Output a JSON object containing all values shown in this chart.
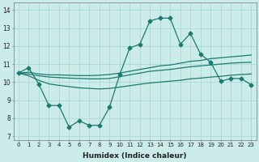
{
  "xlabel": "Humidex (Indice chaleur)",
  "background_color": "#ccecea",
  "grid_color": "#aad8d6",
  "line_color": "#1a7a6e",
  "xlim": [
    -0.5,
    23.5
  ],
  "ylim": [
    6.8,
    14.4
  ],
  "yticks": [
    7,
    8,
    9,
    10,
    11,
    12,
    13,
    14
  ],
  "xticks": [
    0,
    1,
    2,
    3,
    4,
    5,
    6,
    7,
    8,
    9,
    10,
    11,
    12,
    13,
    14,
    15,
    16,
    17,
    18,
    19,
    20,
    21,
    22,
    23
  ],
  "series": {
    "main": [
      10.5,
      10.8,
      9.9,
      8.7,
      8.7,
      7.5,
      7.85,
      7.6,
      7.6,
      8.6,
      10.4,
      11.9,
      12.1,
      13.4,
      13.55,
      13.55,
      12.1,
      12.7,
      11.55,
      11.1,
      10.05,
      10.2,
      10.2,
      9.85
    ],
    "upper": [
      10.5,
      10.55,
      10.45,
      10.4,
      10.4,
      10.38,
      10.36,
      10.36,
      10.38,
      10.42,
      10.5,
      10.6,
      10.7,
      10.8,
      10.9,
      10.95,
      11.05,
      11.15,
      11.2,
      11.3,
      11.35,
      11.4,
      11.45,
      11.5
    ],
    "middle": [
      10.5,
      10.45,
      10.35,
      10.28,
      10.25,
      10.22,
      10.2,
      10.18,
      10.18,
      10.2,
      10.3,
      10.4,
      10.5,
      10.6,
      10.65,
      10.7,
      10.78,
      10.85,
      10.9,
      10.95,
      11.0,
      11.05,
      11.08,
      11.1
    ],
    "lower": [
      10.5,
      10.35,
      10.1,
      9.9,
      9.82,
      9.75,
      9.68,
      9.65,
      9.62,
      9.65,
      9.72,
      9.8,
      9.88,
      9.95,
      10.0,
      10.05,
      10.1,
      10.18,
      10.22,
      10.28,
      10.32,
      10.38,
      10.42,
      10.45
    ]
  }
}
